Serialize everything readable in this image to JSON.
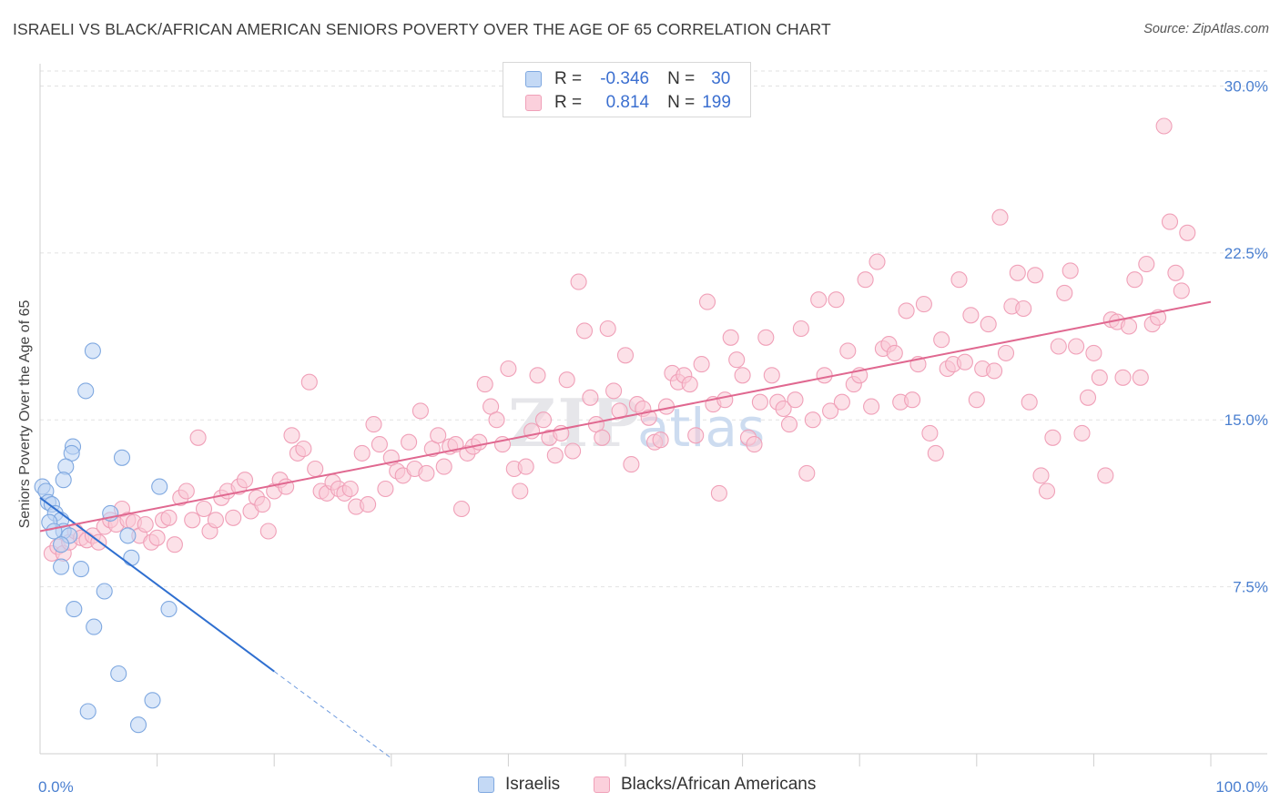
{
  "title": "ISRAELI VS BLACK/AFRICAN AMERICAN SENIORS POVERTY OVER THE AGE OF 65 CORRELATION CHART",
  "source": "Source: ZipAtlas.com",
  "watermark": "ZIPatlas",
  "legend": {
    "rows": [
      {
        "r_label": "R =",
        "r_value": "-0.346",
        "n_label": "N =",
        "n_value": "30",
        "color": "#a8c8f0"
      },
      {
        "r_label": "R =",
        "r_value": "0.814",
        "n_label": "N =",
        "n_value": "199",
        "color": "#f6b8cc"
      }
    ]
  },
  "bottom_legend": [
    {
      "label": "Israelis",
      "color": "#a8c8f0"
    },
    {
      "label": "Blacks/African Americans",
      "color": "#f6b8cc"
    }
  ],
  "chart_data": {
    "type": "scatter",
    "title": "ISRAELI VS BLACK/AFRICAN AMERICAN SENIORS POVERTY OVER THE AGE OF 65 CORRELATION CHART",
    "ylabel": "Seniors Poverty Over the Age of 65",
    "xlim": [
      0,
      100
    ],
    "ylim": [
      0,
      31
    ],
    "y_ticks": [
      {
        "value": 7.5,
        "label": "7.5%"
      },
      {
        "value": 15,
        "label": "15.0%"
      },
      {
        "value": 22.5,
        "label": "22.5%"
      },
      {
        "value": 30,
        "label": "30.0%"
      }
    ],
    "x_tick_labels": [
      {
        "value": 0,
        "label": "0.0%"
      },
      {
        "value": 100,
        "label": "100.0%"
      }
    ],
    "x_minor_ticks": [
      10,
      20,
      30,
      40,
      50,
      60,
      70,
      80,
      90,
      100
    ],
    "grid": "horizontal dashed",
    "series": [
      {
        "name": "Israelis",
        "color": "#7fa8e0",
        "fill": "#bcd4f4",
        "trend": {
          "x0": 0,
          "y0": 11.5,
          "x1": 20,
          "y1": 3.7,
          "dash_to_x": 30,
          "line_color": "#2f6fd0"
        },
        "points": [
          [
            0.2,
            12.0
          ],
          [
            0.5,
            11.8
          ],
          [
            0.7,
            11.3
          ],
          [
            1.0,
            11.2
          ],
          [
            1.3,
            10.8
          ],
          [
            1.8,
            10.5
          ],
          [
            0.8,
            10.4
          ],
          [
            2.0,
            10.0
          ],
          [
            1.2,
            10.0
          ],
          [
            2.5,
            9.8
          ],
          [
            1.8,
            9.4
          ],
          [
            2.8,
            13.8
          ],
          [
            2.7,
            13.5
          ],
          [
            2.2,
            12.9
          ],
          [
            2.0,
            12.3
          ],
          [
            3.9,
            16.3
          ],
          [
            4.5,
            18.1
          ],
          [
            7.0,
            13.3
          ],
          [
            10.2,
            12.0
          ],
          [
            6.0,
            10.8
          ],
          [
            7.5,
            9.8
          ],
          [
            7.8,
            8.8
          ],
          [
            1.8,
            8.4
          ],
          [
            3.5,
            8.3
          ],
          [
            5.5,
            7.3
          ],
          [
            2.9,
            6.5
          ],
          [
            4.6,
            5.7
          ],
          [
            11.0,
            6.5
          ],
          [
            6.7,
            3.6
          ],
          [
            9.6,
            2.4
          ],
          [
            4.1,
            1.9
          ],
          [
            8.4,
            1.3
          ]
        ]
      },
      {
        "name": "Blacks/African Americans",
        "color": "#f0a0b8",
        "fill": "#f9c8d6",
        "trend": {
          "x0": 0,
          "y0": 10.0,
          "x1": 100,
          "y1": 20.3,
          "line_color": "#e06890"
        },
        "points": [
          [
            1,
            9.0
          ],
          [
            1.5,
            9.3
          ],
          [
            2,
            9.0
          ],
          [
            2.5,
            9.5
          ],
          [
            3,
            10.0
          ],
          [
            3.5,
            9.7
          ],
          [
            4,
            9.6
          ],
          [
            4.5,
            9.8
          ],
          [
            5,
            9.5
          ],
          [
            5.5,
            10.2
          ],
          [
            6,
            10.5
          ],
          [
            6.5,
            10.3
          ],
          [
            7,
            11.0
          ],
          [
            7.5,
            10.5
          ],
          [
            8,
            10.4
          ],
          [
            8.5,
            9.8
          ],
          [
            9,
            10.3
          ],
          [
            9.5,
            9.5
          ],
          [
            10,
            9.7
          ],
          [
            10.5,
            10.5
          ],
          [
            11,
            10.6
          ],
          [
            11.5,
            9.4
          ],
          [
            12,
            11.5
          ],
          [
            12.5,
            11.8
          ],
          [
            13,
            10.5
          ],
          [
            13.5,
            14.2
          ],
          [
            14,
            11.0
          ],
          [
            14.5,
            10.0
          ],
          [
            15,
            10.5
          ],
          [
            15.5,
            11.5
          ],
          [
            16,
            11.8
          ],
          [
            16.5,
            10.6
          ],
          [
            17,
            12.0
          ],
          [
            17.5,
            12.3
          ],
          [
            18,
            10.9
          ],
          [
            18.5,
            11.5
          ],
          [
            19,
            11.2
          ],
          [
            19.5,
            10.0
          ],
          [
            20,
            11.8
          ],
          [
            20.5,
            12.3
          ],
          [
            21,
            12.0
          ],
          [
            21.5,
            14.3
          ],
          [
            22,
            13.5
          ],
          [
            22.5,
            13.7
          ],
          [
            23,
            16.7
          ],
          [
            23.5,
            12.8
          ],
          [
            24,
            11.8
          ],
          [
            24.5,
            11.7
          ],
          [
            25,
            12.2
          ],
          [
            25.5,
            11.9
          ],
          [
            26,
            11.7
          ],
          [
            26.5,
            11.9
          ],
          [
            27,
            11.1
          ],
          [
            27.5,
            13.5
          ],
          [
            28,
            11.2
          ],
          [
            28.5,
            14.8
          ],
          [
            29,
            13.9
          ],
          [
            29.5,
            11.9
          ],
          [
            30,
            13.3
          ],
          [
            30.5,
            12.7
          ],
          [
            31,
            12.5
          ],
          [
            31.5,
            14.0
          ],
          [
            32,
            12.8
          ],
          [
            32.5,
            15.4
          ],
          [
            33,
            12.6
          ],
          [
            33.5,
            13.7
          ],
          [
            34,
            14.3
          ],
          [
            34.5,
            12.9
          ],
          [
            35,
            13.8
          ],
          [
            35.5,
            13.9
          ],
          [
            36,
            11.0
          ],
          [
            36.5,
            13.5
          ],
          [
            37,
            13.8
          ],
          [
            37.5,
            14.0
          ],
          [
            38,
            16.6
          ],
          [
            38.5,
            15.6
          ],
          [
            39,
            15.0
          ],
          [
            39.5,
            13.9
          ],
          [
            40,
            17.3
          ],
          [
            40.5,
            12.8
          ],
          [
            41,
            11.8
          ],
          [
            41.5,
            12.9
          ],
          [
            42,
            14.5
          ],
          [
            42.5,
            17.0
          ],
          [
            43,
            15.0
          ],
          [
            43.5,
            14.2
          ],
          [
            44,
            13.4
          ],
          [
            44.5,
            14.4
          ],
          [
            45,
            16.8
          ],
          [
            45.5,
            13.6
          ],
          [
            46,
            21.2
          ],
          [
            46.5,
            19.0
          ],
          [
            47,
            16.0
          ],
          [
            47.5,
            14.8
          ],
          [
            48,
            14.2
          ],
          [
            48.5,
            19.1
          ],
          [
            49,
            16.3
          ],
          [
            49.5,
            15.4
          ],
          [
            50,
            17.9
          ],
          [
            50.5,
            13.0
          ],
          [
            51,
            15.7
          ],
          [
            51.5,
            15.5
          ],
          [
            52,
            15.1
          ],
          [
            52.5,
            14.0
          ],
          [
            53,
            14.1
          ],
          [
            53.5,
            15.6
          ],
          [
            54,
            17.1
          ],
          [
            54.5,
            16.7
          ],
          [
            55,
            17.0
          ],
          [
            55.5,
            16.6
          ],
          [
            56,
            14.3
          ],
          [
            56.5,
            17.5
          ],
          [
            57,
            20.3
          ],
          [
            57.5,
            15.7
          ],
          [
            58,
            11.7
          ],
          [
            58.5,
            15.9
          ],
          [
            59,
            18.7
          ],
          [
            59.5,
            17.7
          ],
          [
            60,
            17.0
          ],
          [
            60.5,
            14.2
          ],
          [
            61,
            13.9
          ],
          [
            61.5,
            15.8
          ],
          [
            62,
            18.7
          ],
          [
            62.5,
            17.0
          ],
          [
            63,
            15.8
          ],
          [
            63.5,
            15.5
          ],
          [
            64,
            14.8
          ],
          [
            64.5,
            15.9
          ],
          [
            65,
            19.1
          ],
          [
            65.5,
            12.6
          ],
          [
            66,
            15.0
          ],
          [
            66.5,
            20.4
          ],
          [
            67,
            17.0
          ],
          [
            67.5,
            15.4
          ],
          [
            68,
            20.4
          ],
          [
            68.5,
            15.8
          ],
          [
            69,
            18.1
          ],
          [
            69.5,
            16.6
          ],
          [
            70,
            17.0
          ],
          [
            70.5,
            21.3
          ],
          [
            71,
            15.6
          ],
          [
            71.5,
            22.1
          ],
          [
            72,
            18.2
          ],
          [
            72.5,
            18.4
          ],
          [
            73,
            18.0
          ],
          [
            73.5,
            15.8
          ],
          [
            74,
            19.9
          ],
          [
            74.5,
            15.9
          ],
          [
            75,
            17.5
          ],
          [
            75.5,
            20.2
          ],
          [
            76,
            14.4
          ],
          [
            76.5,
            13.5
          ],
          [
            77,
            18.6
          ],
          [
            77.5,
            17.3
          ],
          [
            78,
            17.5
          ],
          [
            78.5,
            21.3
          ],
          [
            79,
            17.6
          ],
          [
            79.5,
            19.7
          ],
          [
            80,
            15.9
          ],
          [
            80.5,
            17.3
          ],
          [
            81,
            19.3
          ],
          [
            81.5,
            17.2
          ],
          [
            82,
            24.1
          ],
          [
            82.5,
            18.0
          ],
          [
            83,
            20.1
          ],
          [
            83.5,
            21.6
          ],
          [
            84,
            20.0
          ],
          [
            84.5,
            15.8
          ],
          [
            85,
            21.5
          ],
          [
            85.5,
            12.5
          ],
          [
            86,
            11.8
          ],
          [
            86.5,
            14.2
          ],
          [
            87,
            18.3
          ],
          [
            87.5,
            20.7
          ],
          [
            88,
            21.7
          ],
          [
            88.5,
            18.3
          ],
          [
            89,
            14.4
          ],
          [
            89.5,
            16.0
          ],
          [
            90,
            18.0
          ],
          [
            90.5,
            16.9
          ],
          [
            91,
            12.5
          ],
          [
            91.5,
            19.5
          ],
          [
            92,
            19.4
          ],
          [
            92.5,
            16.9
          ],
          [
            93,
            19.2
          ],
          [
            93.5,
            21.3
          ],
          [
            94,
            16.9
          ],
          [
            94.5,
            22.0
          ],
          [
            95,
            19.3
          ],
          [
            95.5,
            19.6
          ],
          [
            96,
            28.2
          ],
          [
            96.5,
            23.9
          ],
          [
            97,
            21.6
          ],
          [
            97.5,
            20.8
          ],
          [
            98,
            23.4
          ]
        ]
      }
    ]
  }
}
